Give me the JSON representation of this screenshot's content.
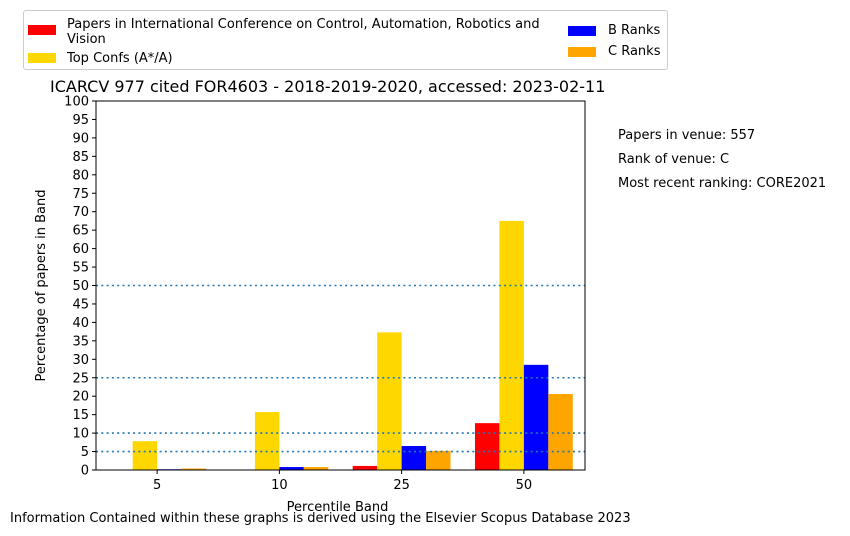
{
  "chart_data": {
    "type": "bar",
    "title": "ICARCV 977 cited FOR4603 - 2018-2019-2020, accessed: 2023-02-11",
    "xlabel": "Percentile Band",
    "ylabel": "Percentage of papers in Band",
    "categories": [
      "5",
      "10",
      "25",
      "50"
    ],
    "ylim": [
      0,
      100
    ],
    "yticks": [
      "0",
      "5",
      "10",
      "15",
      "20",
      "25",
      "30",
      "35",
      "40",
      "45",
      "50",
      "55",
      "60",
      "65",
      "70",
      "75",
      "80",
      "85",
      "90",
      "95",
      "100"
    ],
    "reference_lines": [
      5,
      10,
      25,
      50
    ],
    "grid": false,
    "legend_position": "top",
    "series": [
      {
        "name": "Papers in International Conference on Control, Automation, Robotics and Vision",
        "color": "#ff0000",
        "values": [
          0,
          0,
          1.1,
          12.7
        ]
      },
      {
        "name": "Top Confs (A*/A)",
        "color": "#ffd700",
        "values": [
          7.8,
          15.7,
          37.3,
          67.5
        ]
      },
      {
        "name": "B Ranks",
        "color": "#0000ff",
        "values": [
          0.2,
          0.8,
          6.5,
          28.5
        ]
      },
      {
        "name": "C Ranks",
        "color": "#ffa500",
        "values": [
          0.4,
          0.8,
          5.2,
          20.6
        ]
      }
    ]
  },
  "info": {
    "papers_in_venue": "Papers in venue: 557",
    "rank_of_venue": "Rank of venue: C",
    "recent_ranking": "Most recent ranking: CORE2021"
  },
  "footer": "Information Contained within these graphs is derived using the Elsevier Scopus Database 2023",
  "colors": {
    "reference_line": "#1f77b4"
  }
}
